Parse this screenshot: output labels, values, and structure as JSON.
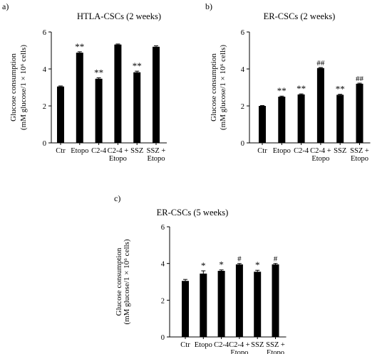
{
  "chart_data": [
    {
      "type": "bar",
      "panel_label": "a)",
      "title": "HTLA-CSCs (2 weeks)",
      "ylabel_line1": "Glucose consumption",
      "ylabel_line2": "(mM glucose/1 × 10⁶ cells)",
      "ylim": [
        0,
        6
      ],
      "yticks": [
        "0",
        "2",
        "4",
        "6"
      ],
      "categories": [
        [
          "Ctr"
        ],
        [
          "Etopo"
        ],
        [
          "C2-4"
        ],
        [
          "C2-4 +",
          "Etopo"
        ],
        [
          "SSZ"
        ],
        [
          "SSZ +",
          "Etopo"
        ]
      ],
      "values": [
        3.05,
        4.88,
        3.47,
        5.32,
        3.82,
        5.2
      ],
      "errors": [
        0.03,
        0.05,
        0.05,
        0.03,
        0.06,
        0.05
      ],
      "annotations": [
        "",
        "**",
        "**",
        "",
        "**",
        ""
      ]
    },
    {
      "type": "bar",
      "panel_label": "b)",
      "title": "ER-CSCs (2 weeks)",
      "ylabel_line1": "Glucose consumption",
      "ylabel_line2": "(mM glucose/1 × 10⁶ cells)",
      "ylim": [
        0,
        6
      ],
      "yticks": [
        "0",
        "2",
        "4",
        "6"
      ],
      "categories": [
        [
          "Ctr"
        ],
        [
          "Etopo"
        ],
        [
          "C2-4"
        ],
        [
          "C2-4 +",
          "Etopo"
        ],
        [
          "SSZ"
        ],
        [
          "SSZ +",
          "Etopo"
        ]
      ],
      "values": [
        2.0,
        2.5,
        2.62,
        4.05,
        2.6,
        3.2
      ],
      "errors": [
        0.02,
        0.03,
        0.03,
        0.03,
        0.03,
        0.03
      ],
      "annotations": [
        "",
        "**",
        "**",
        "##",
        "**",
        "##"
      ]
    },
    {
      "type": "bar",
      "panel_label": "c)",
      "title": "ER-CSCs (5 weeks)",
      "ylabel_line1": "Glucose consumption",
      "ylabel_line2": "(mM glucose/1 × 10⁶ cells)",
      "ylim": [
        0,
        6
      ],
      "yticks": [
        "0",
        "2",
        "4",
        "6"
      ],
      "categories": [
        [
          "Ctr"
        ],
        [
          "Etopo"
        ],
        [
          "C2-4"
        ],
        [
          "C2-4 +",
          "Etopo"
        ],
        [
          "SSZ"
        ],
        [
          "SSZ +",
          "Etopo"
        ]
      ],
      "values": [
        3.05,
        3.45,
        3.6,
        3.95,
        3.55,
        3.95
      ],
      "errors": [
        0.08,
        0.15,
        0.05,
        0.05,
        0.08,
        0.05
      ],
      "annotations": [
        "",
        "*",
        "*",
        "#",
        "*",
        "#"
      ]
    }
  ]
}
